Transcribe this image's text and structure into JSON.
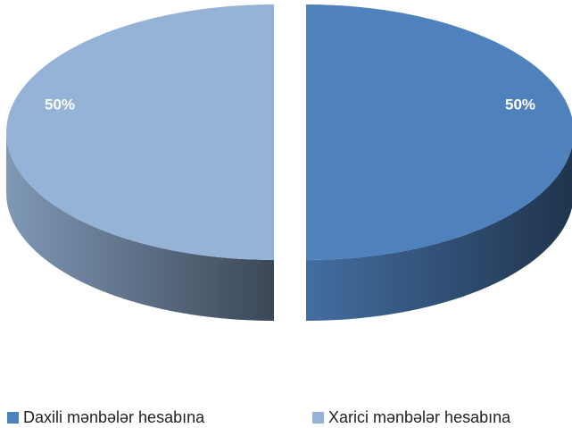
{
  "chart_data": {
    "type": "pie",
    "categories": [
      "Daxili mənbələr hesabına",
      "Xarici mənbələr hesabına"
    ],
    "values": [
      50,
      50
    ],
    "value_labels": [
      "50%",
      "50%"
    ],
    "colors": [
      "#4f81bd",
      "#95b3d7"
    ],
    "legend": "bottom"
  }
}
